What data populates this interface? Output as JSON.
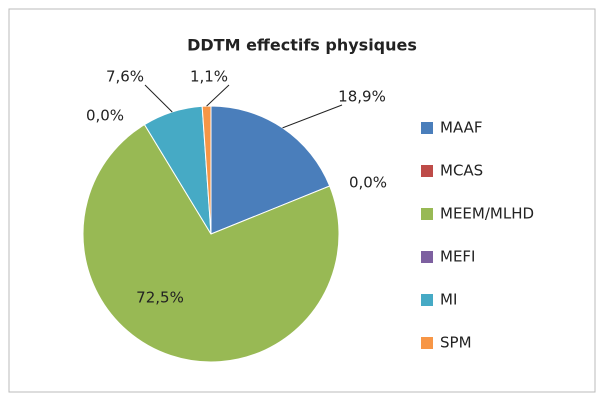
{
  "chart_data": {
    "type": "pie",
    "title": "DDTM effectifs physiques",
    "categories": [
      "MAAF",
      "MCAS",
      "MEEM/MLHD",
      "MEFI",
      "MI",
      "SPM"
    ],
    "values": [
      18.9,
      0.0,
      72.5,
      0.0,
      7.6,
      1.1
    ],
    "value_labels": [
      "18,9%",
      "0,0%",
      "72,5%",
      "0,0%",
      "7,6%",
      "1,1%"
    ],
    "colors": [
      "#4a7ebb",
      "#be4b48",
      "#98b954",
      "#7d60a0",
      "#46aac5",
      "#f79646"
    ],
    "legend": "right"
  }
}
